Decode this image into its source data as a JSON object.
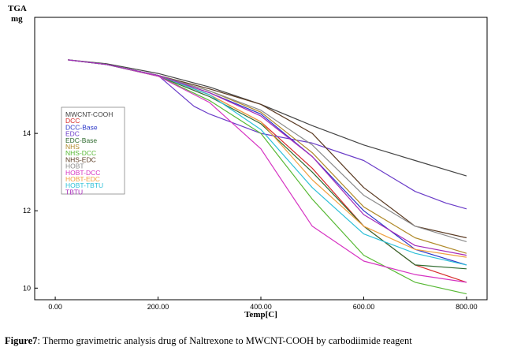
{
  "caption": {
    "label": "Figure7",
    "text": ": Thermo gravimetric analysis drug of Naltrexone to MWCNT-COOH by carbodiimide reagent"
  },
  "chart_data": {
    "type": "line",
    "ylabel_top": "TGA",
    "ylabel_unit": "mg",
    "xlabel": "Temp[C]",
    "xlim": [
      -40,
      840
    ],
    "ylim": [
      9.7,
      17.0
    ],
    "x_ticks": [
      0,
      200,
      400,
      600,
      800
    ],
    "x_tick_labels": [
      "0.00",
      "200.00",
      "400.00",
      "600.00",
      "800.00"
    ],
    "y_ticks": [
      10,
      12,
      14
    ],
    "y_tick_labels": [
      "10",
      "12",
      "14"
    ],
    "grid": false,
    "legend_position": "left, middle",
    "series": [
      {
        "name": "MWCNT-COOH",
        "color": "#444444",
        "x": [
          25,
          100,
          200,
          300,
          400,
          500,
          600,
          700,
          800
        ],
        "y": [
          15.9,
          15.8,
          15.55,
          15.2,
          14.75,
          14.2,
          13.7,
          13.3,
          12.9
        ]
      },
      {
        "name": "DCC",
        "color": "#d62a2a",
        "x": [
          25,
          100,
          200,
          300,
          400,
          500,
          600,
          700,
          800
        ],
        "y": [
          15.9,
          15.78,
          15.5,
          15.0,
          14.3,
          13.1,
          11.6,
          10.6,
          10.15
        ]
      },
      {
        "name": "DCC-Base",
        "color": "#2a36c8",
        "x": [
          25,
          100,
          200,
          300,
          400,
          500,
          600,
          700,
          800
        ],
        "y": [
          15.9,
          15.78,
          15.5,
          15.05,
          14.5,
          13.4,
          12.0,
          11.0,
          10.6
        ]
      },
      {
        "name": "EDC",
        "color": "#6a3cc8",
        "x": [
          25,
          100,
          200,
          270,
          300,
          400,
          500,
          600,
          700,
          760,
          800
        ],
        "y": [
          15.9,
          15.78,
          15.5,
          14.7,
          14.5,
          14.0,
          13.75,
          13.3,
          12.5,
          12.2,
          12.05
        ]
      },
      {
        "name": "EDC-Base",
        "color": "#2f6b2f",
        "x": [
          25,
          100,
          200,
          300,
          400,
          500,
          600,
          700,
          800
        ],
        "y": [
          15.9,
          15.78,
          15.48,
          14.95,
          14.25,
          13.0,
          11.6,
          10.6,
          10.5
        ]
      },
      {
        "name": "NHS",
        "color": "#b08a2a",
        "x": [
          25,
          100,
          200,
          300,
          400,
          500,
          600,
          700,
          800
        ],
        "y": [
          15.9,
          15.78,
          15.5,
          15.1,
          14.55,
          13.5,
          12.1,
          11.3,
          10.9
        ]
      },
      {
        "name": "NHS-DCC",
        "color": "#56b833",
        "x": [
          25,
          100,
          200,
          300,
          400,
          500,
          600,
          700,
          800
        ],
        "y": [
          15.9,
          15.78,
          15.48,
          14.85,
          14.0,
          12.3,
          10.85,
          10.15,
          9.85
        ]
      },
      {
        "name": "NHS-EDC",
        "color": "#5a3a22",
        "x": [
          25,
          100,
          200,
          300,
          400,
          500,
          600,
          700,
          800
        ],
        "y": [
          15.9,
          15.78,
          15.5,
          15.15,
          14.75,
          14.0,
          12.6,
          11.6,
          11.3
        ]
      },
      {
        "name": "HOBT",
        "color": "#8a8a8a",
        "x": [
          25,
          100,
          200,
          300,
          400,
          500,
          600,
          700,
          800
        ],
        "y": [
          15.9,
          15.78,
          15.5,
          15.1,
          14.6,
          13.7,
          12.4,
          11.6,
          11.2
        ]
      },
      {
        "name": "HOBT-DCC",
        "color": "#d633c2",
        "x": [
          25,
          100,
          200,
          300,
          400,
          450,
          500,
          600,
          700,
          800
        ],
        "y": [
          15.9,
          15.78,
          15.48,
          14.8,
          13.6,
          12.6,
          11.6,
          10.7,
          10.35,
          10.15
        ]
      },
      {
        "name": "HOBT-EDC",
        "color": "#f0a040",
        "x": [
          25,
          100,
          200,
          300,
          400,
          500,
          600,
          700,
          800
        ],
        "y": [
          15.9,
          15.78,
          15.5,
          15.0,
          14.3,
          12.8,
          11.6,
          11.0,
          10.8
        ]
      },
      {
        "name": "HOBT-TBTU",
        "color": "#2ec0d8",
        "x": [
          25,
          100,
          200,
          300,
          400,
          500,
          600,
          700,
          800
        ],
        "y": [
          15.9,
          15.78,
          15.5,
          15.0,
          14.1,
          12.6,
          11.4,
          10.9,
          10.6
        ]
      },
      {
        "name": "TBTU",
        "color": "#a62ab8",
        "x": [
          25,
          100,
          200,
          300,
          400,
          500,
          600,
          700,
          800
        ],
        "y": [
          15.9,
          15.78,
          15.5,
          15.05,
          14.45,
          13.4,
          11.9,
          11.1,
          10.85
        ]
      }
    ]
  }
}
